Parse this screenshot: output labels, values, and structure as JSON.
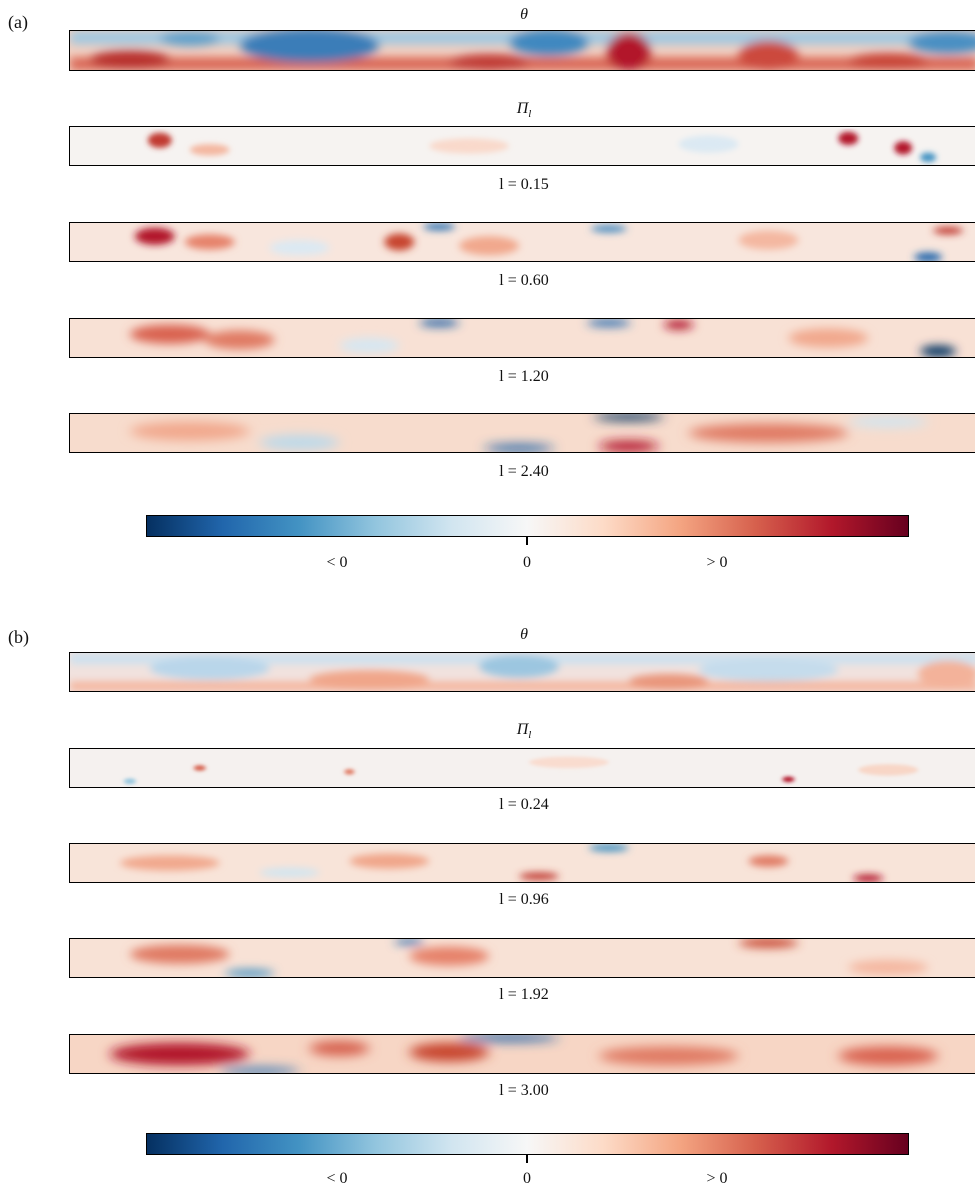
{
  "panels": [
    {
      "label": "(a)",
      "theta_title": "θ",
      "pi_title": "Π",
      "pi_sub": "l",
      "scales": [
        "l = 0.15",
        "l = 0.60",
        "l = 1.20",
        "l = 2.40"
      ]
    },
    {
      "label": "(b)",
      "theta_title": "θ",
      "pi_title": "Π",
      "pi_sub": "l",
      "scales": [
        "l = 0.24",
        "l = 0.96",
        "l = 1.92",
        "l = 3.00"
      ]
    }
  ],
  "colorbar": {
    "colormap": "RdBu_r",
    "ticks": [
      "< 0",
      "0",
      "> 0"
    ]
  }
}
